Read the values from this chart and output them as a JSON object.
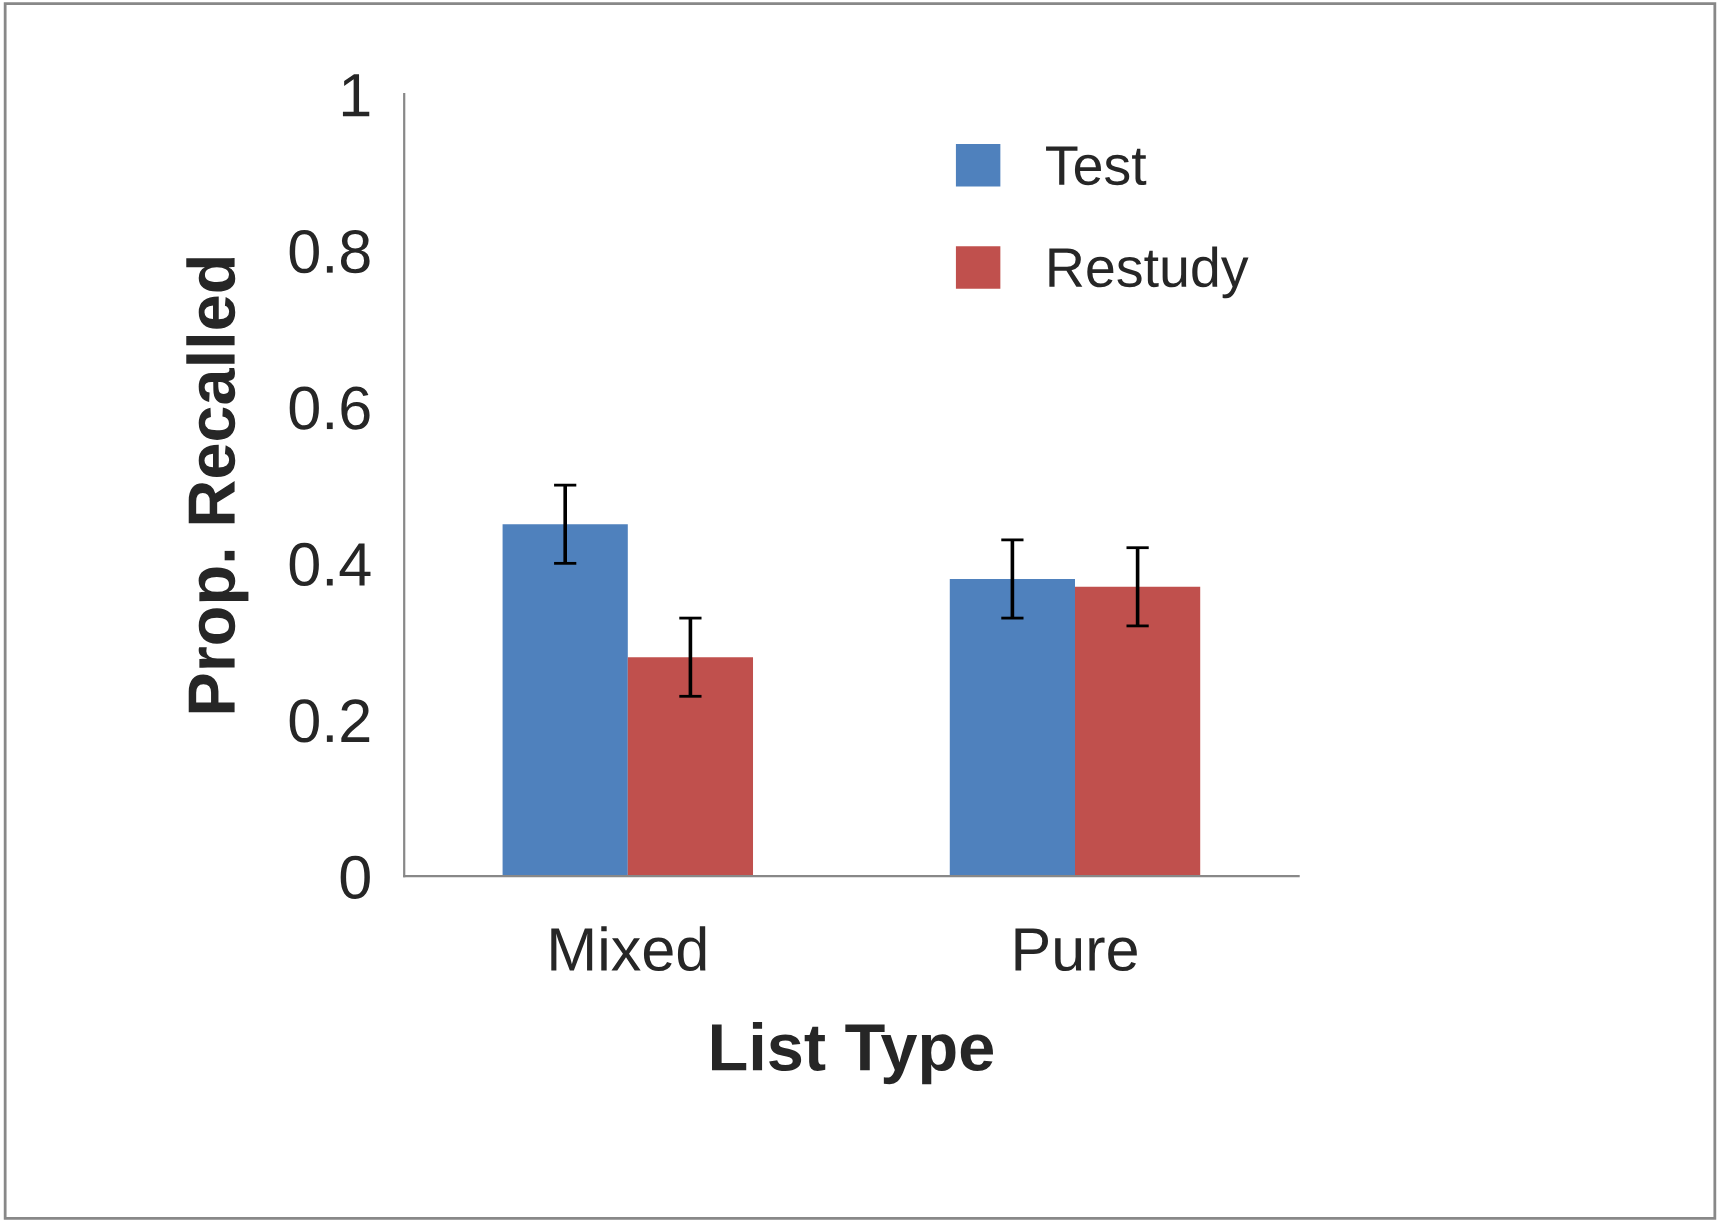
{
  "chart_data": {
    "type": "bar",
    "xlabel": "List Type",
    "ylabel": "Prop. Recalled",
    "categories": [
      "Mixed",
      "Pure"
    ],
    "series": [
      {
        "name": "Test",
        "color": "#4f81bd",
        "values": [
          0.45,
          0.38
        ],
        "errors": [
          0.05,
          0.05
        ]
      },
      {
        "name": "Restudy",
        "color": "#c0504d",
        "values": [
          0.28,
          0.37
        ],
        "errors": [
          0.05,
          0.05
        ]
      }
    ],
    "ylim": [
      0,
      1
    ],
    "yticks": [
      0,
      0.2,
      0.4,
      0.6,
      0.8,
      1
    ],
    "grid": false,
    "legend": "top right"
  }
}
